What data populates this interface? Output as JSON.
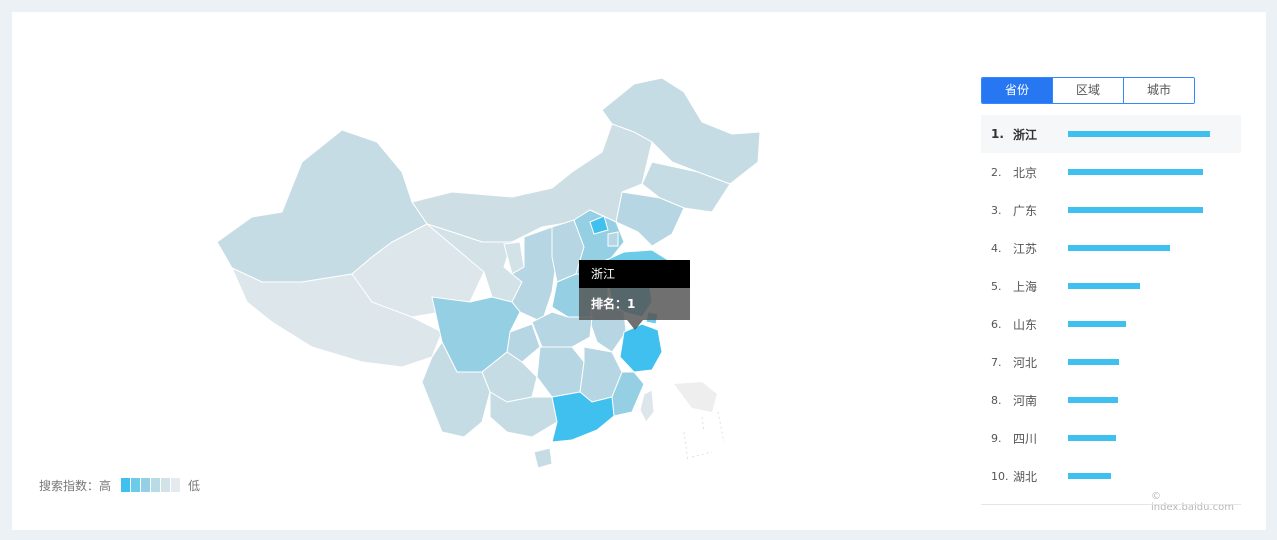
{
  "tooltip": {
    "province": "浙江",
    "rank_label": "排名：1"
  },
  "legend": {
    "label": "搜索指数：高",
    "low_label": "低",
    "swatches": [
      "#40c0ee",
      "#6dcbea",
      "#94cfe3",
      "#b9dbe5",
      "#d2e3e8",
      "#e3ebee"
    ]
  },
  "tabs": [
    {
      "label": "省份",
      "active": true
    },
    {
      "label": "区域",
      "active": false
    },
    {
      "label": "城市",
      "active": false
    }
  ],
  "ranking": [
    {
      "num": "1.",
      "name": "浙江",
      "value": 1.0
    },
    {
      "num": "2.",
      "name": "北京",
      "value": 0.95
    },
    {
      "num": "3.",
      "name": "广东",
      "value": 0.95
    },
    {
      "num": "4.",
      "name": "江苏",
      "value": 0.72
    },
    {
      "num": "5.",
      "name": "上海",
      "value": 0.51
    },
    {
      "num": "6.",
      "name": "山东",
      "value": 0.41
    },
    {
      "num": "7.",
      "name": "河北",
      "value": 0.36
    },
    {
      "num": "8.",
      "name": "河南",
      "value": 0.35
    },
    {
      "num": "9.",
      "name": "四川",
      "value": 0.34
    },
    {
      "num": "10.",
      "name": "湖北",
      "value": 0.3
    }
  ],
  "watermark": "© index.baidu.com",
  "colors": {
    "accent": "#2777f2",
    "bar": "#40c0ee",
    "highlight": "#40c0ee"
  }
}
